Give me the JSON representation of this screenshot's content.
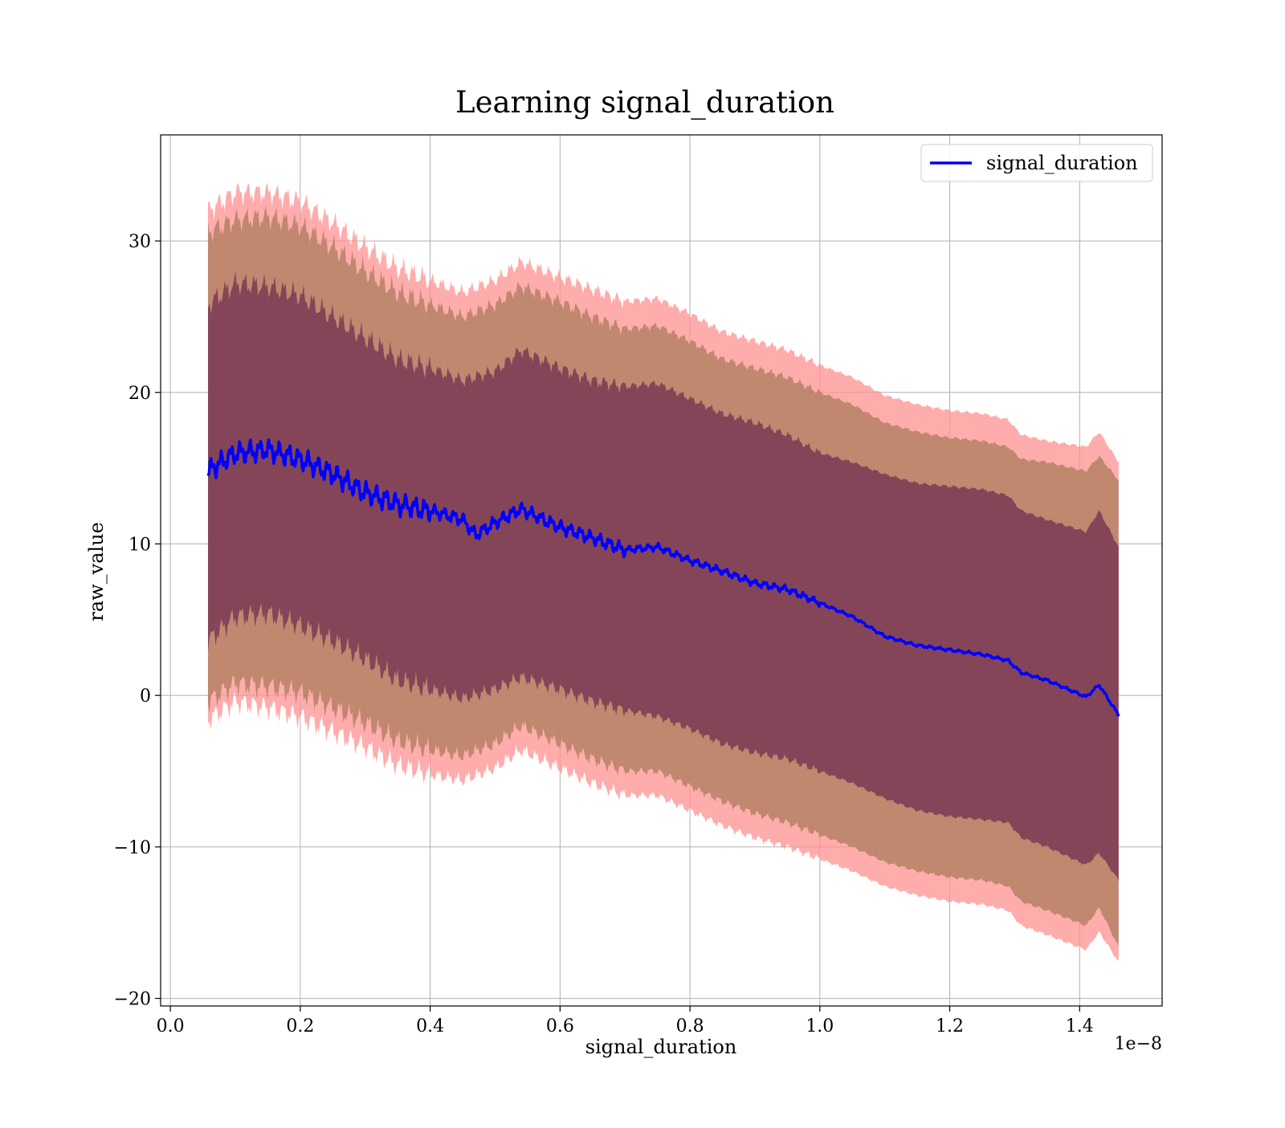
{
  "chart_data": {
    "type": "line",
    "title": "Learning signal_duration",
    "xlabel": "signal_duration",
    "ylabel": "raw_value",
    "x_offset_label": "1e−8",
    "xlim": [
      -0.015,
      1.527
    ],
    "ylim": [
      -20.5,
      37
    ],
    "x_ticks": [
      0.0,
      0.2,
      0.4,
      0.6,
      0.8,
      1.0,
      1.2,
      1.4
    ],
    "x_tick_labels": [
      "0.0",
      "0.2",
      "0.4",
      "0.6",
      "0.8",
      "1.0",
      "1.2",
      "1.4"
    ],
    "y_ticks": [
      -20,
      -10,
      0,
      10,
      20,
      30
    ],
    "y_tick_labels": [
      "−20",
      "−10",
      "0",
      "10",
      "20",
      "30"
    ],
    "grid": true,
    "legend_position": "top-right",
    "legend": [
      "signal_duration"
    ],
    "colors": {
      "line": "#0000ff",
      "band_outer": "#ff9090",
      "band_middle": "#b08060",
      "band_inner": "#7a3a55",
      "grid": "#b0b0b0"
    },
    "series": [
      {
        "name": "signal_duration",
        "x": [
          0.058,
          0.1,
          0.15,
          0.2,
          0.25,
          0.3,
          0.35,
          0.4,
          0.45,
          0.47,
          0.5,
          0.54,
          0.6,
          0.65,
          0.7,
          0.75,
          0.8,
          0.85,
          0.9,
          0.95,
          1.0,
          1.05,
          1.1,
          1.15,
          1.2,
          1.25,
          1.29,
          1.31,
          1.35,
          1.41,
          1.43,
          1.46
        ],
        "y": [
          14.8,
          16.0,
          16.2,
          15.6,
          14.6,
          13.4,
          12.6,
          12.2,
          11.6,
          10.6,
          11.4,
          12.3,
          11.1,
          10.4,
          9.6,
          9.8,
          8.9,
          8.2,
          7.4,
          7.0,
          6.1,
          5.2,
          3.9,
          3.3,
          3.0,
          2.7,
          2.3,
          1.5,
          1.0,
          -0.1,
          0.7,
          -1.3
        ]
      }
    ],
    "bands": [
      {
        "level": "outer",
        "x": [
          0.058,
          0.1,
          0.15,
          0.2,
          0.25,
          0.3,
          0.35,
          0.4,
          0.45,
          0.5,
          0.54,
          0.6,
          0.65,
          0.7,
          0.75,
          0.8,
          0.85,
          0.9,
          0.95,
          1.0,
          1.05,
          1.1,
          1.15,
          1.2,
          1.25,
          1.29,
          1.31,
          1.35,
          1.41,
          1.43,
          1.46
        ],
        "upper": [
          32.0,
          33.2,
          33.2,
          32.6,
          31.2,
          29.6,
          28.2,
          27.4,
          26.6,
          27.4,
          28.6,
          27.6,
          26.8,
          26.0,
          26.2,
          25.2,
          24.0,
          23.4,
          22.8,
          21.8,
          21.0,
          19.8,
          19.2,
          18.8,
          18.6,
          18.2,
          17.2,
          16.8,
          16.4,
          17.4,
          15.4
        ],
        "lower": [
          -1.6,
          -0.4,
          -0.8,
          -1.4,
          -2.4,
          -3.4,
          -4.6,
          -5.2,
          -5.6,
          -4.8,
          -3.6,
          -4.8,
          -5.8,
          -6.6,
          -6.6,
          -7.6,
          -8.6,
          -9.4,
          -10.0,
          -10.8,
          -11.6,
          -12.6,
          -13.2,
          -13.6,
          -13.8,
          -14.2,
          -15.2,
          -15.8,
          -16.8,
          -15.6,
          -17.6
        ]
      },
      {
        "level": "middle",
        "x": [
          0.058,
          0.1,
          0.15,
          0.2,
          0.25,
          0.3,
          0.35,
          0.4,
          0.45,
          0.5,
          0.54,
          0.6,
          0.65,
          0.7,
          0.75,
          0.8,
          0.85,
          0.9,
          0.95,
          1.0,
          1.05,
          1.1,
          1.15,
          1.2,
          1.25,
          1.29,
          1.31,
          1.35,
          1.41,
          1.43,
          1.46
        ],
        "upper": [
          30.6,
          31.4,
          31.6,
          31.0,
          29.6,
          28.0,
          26.6,
          25.8,
          25.0,
          25.8,
          27.0,
          26.0,
          25.0,
          24.2,
          24.4,
          23.4,
          22.2,
          21.6,
          21.0,
          20.0,
          19.2,
          18.0,
          17.4,
          17.0,
          16.8,
          16.4,
          15.6,
          15.4,
          14.8,
          15.8,
          14.2
        ],
        "lower": [
          -0.4,
          0.8,
          0.6,
          0.2,
          -0.8,
          -1.8,
          -3.0,
          -3.6,
          -4.0,
          -3.2,
          -2.0,
          -3.2,
          -4.2,
          -5.0,
          -5.0,
          -6.0,
          -7.0,
          -7.8,
          -8.4,
          -9.2,
          -10.0,
          -11.0,
          -11.6,
          -12.0,
          -12.2,
          -12.6,
          -13.6,
          -14.2,
          -15.2,
          -14.0,
          -16.6
        ]
      },
      {
        "level": "inner",
        "x": [
          0.058,
          0.1,
          0.15,
          0.2,
          0.25,
          0.3,
          0.35,
          0.4,
          0.45,
          0.5,
          0.54,
          0.6,
          0.65,
          0.7,
          0.75,
          0.8,
          0.85,
          0.9,
          0.95,
          1.0,
          1.05,
          1.1,
          1.15,
          1.2,
          1.25,
          1.29,
          1.31,
          1.35,
          1.41,
          1.43,
          1.46
        ],
        "upper": [
          25.8,
          27.2,
          27.0,
          26.4,
          25.0,
          23.6,
          22.2,
          21.6,
          20.8,
          21.4,
          22.8,
          21.6,
          20.8,
          20.4,
          20.6,
          19.6,
          18.6,
          18.0,
          17.2,
          16.0,
          15.4,
          14.6,
          14.0,
          13.8,
          13.6,
          13.2,
          12.2,
          11.6,
          10.8,
          12.2,
          9.8
        ],
        "lower": [
          3.6,
          5.2,
          5.4,
          4.6,
          3.6,
          2.4,
          1.0,
          0.4,
          -0.2,
          0.4,
          1.2,
          0.4,
          -0.4,
          -1.0,
          -1.4,
          -2.2,
          -3.2,
          -3.8,
          -4.2,
          -5.0,
          -5.8,
          -6.8,
          -7.6,
          -8.0,
          -8.2,
          -8.4,
          -9.4,
          -10.0,
          -11.2,
          -10.4,
          -12.2
        ]
      }
    ]
  }
}
